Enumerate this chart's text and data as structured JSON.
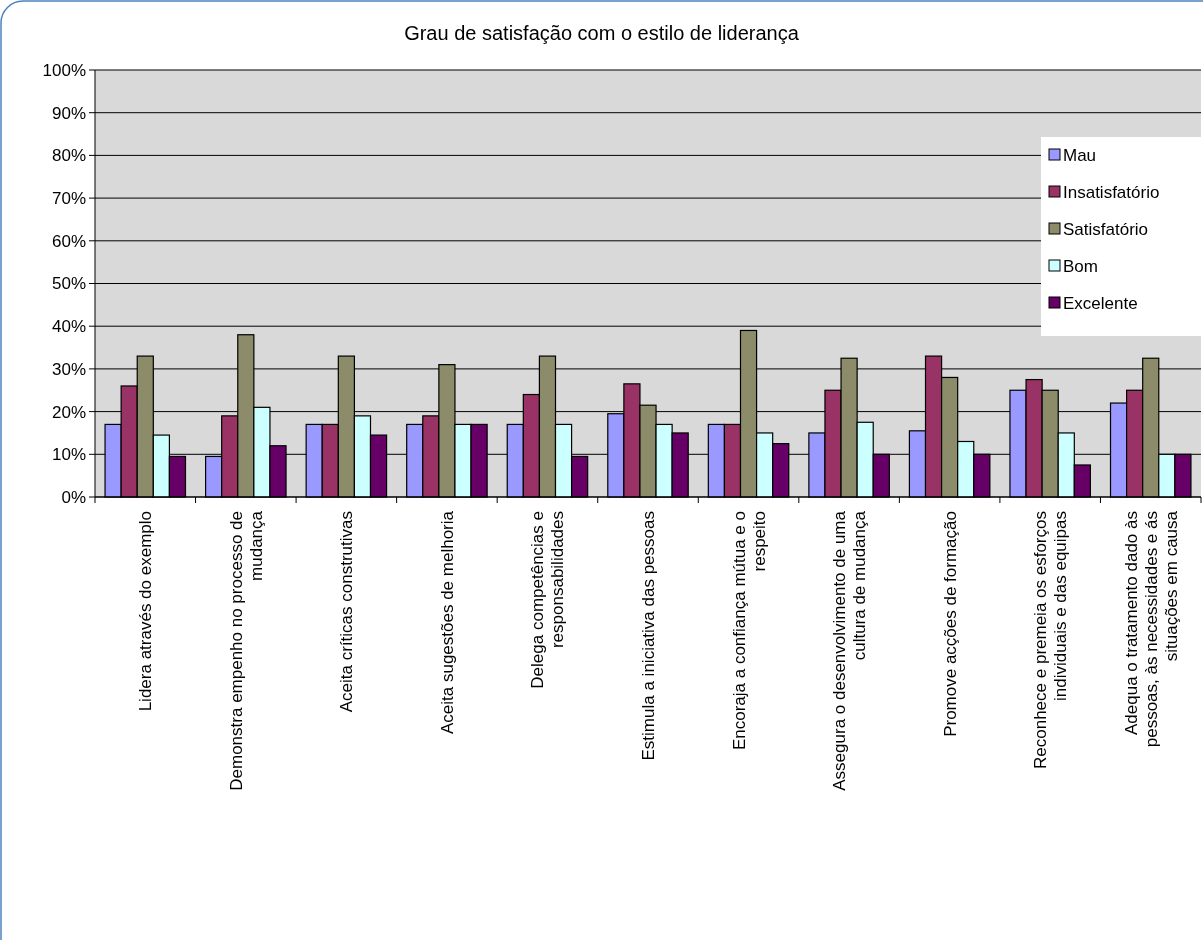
{
  "chart_data": {
    "type": "bar",
    "title": "Grau de satisfação com o estilo de liderança",
    "categories": [
      "Lidera através do exemplo",
      "Demonstra empenho no processo de mudança",
      "Aceita críticas construtivas",
      "Aceita sugestões de melhoria",
      "Delega competências e responsabilidades",
      "Estimula a iniciativa das pessoas",
      "Encoraja a confiança mútua e o respeito",
      "Assegura o desenvolvimento de uma cultura de mudança",
      "Promove acções de formação",
      "Reconhece e premeia os esforços individuais e das equipas",
      "Adequa o tratamento dado às pessoas, às necessidades e ás situações em causa"
    ],
    "series": [
      {
        "name": "Mau",
        "color": "#9999ff",
        "values": [
          17,
          9.5,
          17,
          17,
          17,
          19.5,
          17,
          15,
          15.5,
          25,
          22
        ]
      },
      {
        "name": "Insatisfatório",
        "color": "#993366",
        "values": [
          26,
          19,
          17,
          19,
          24,
          26.5,
          17,
          25,
          33,
          27.5,
          25
        ]
      },
      {
        "name": "Satisfatório",
        "color": "#8c8c6a",
        "values": [
          33,
          38,
          33,
          31,
          33,
          21.5,
          39,
          32.5,
          28,
          25,
          32.5
        ]
      },
      {
        "name": "Bom",
        "color": "#ccffff",
        "values": [
          14.5,
          21,
          19,
          17,
          17,
          17,
          15,
          17.5,
          13,
          15,
          10
        ]
      },
      {
        "name": "Excelente",
        "color": "#660066",
        "values": [
          9.5,
          12,
          14.5,
          17,
          9.5,
          15,
          12.5,
          10,
          10,
          7.5,
          10
        ]
      }
    ],
    "ylim": [
      0,
      100
    ],
    "yticks": [
      {
        "value": 0,
        "label": "0%"
      },
      {
        "value": 10,
        "label": "10%"
      },
      {
        "value": 20,
        "label": "20%"
      },
      {
        "value": 30,
        "label": "30%"
      },
      {
        "value": 40,
        "label": "40%"
      },
      {
        "value": 50,
        "label": "50%"
      },
      {
        "value": 60,
        "label": "60%"
      },
      {
        "value": 70,
        "label": "70%"
      },
      {
        "value": 80,
        "label": "80%"
      },
      {
        "value": 90,
        "label": "90%"
      },
      {
        "value": 100,
        "label": "100%"
      }
    ],
    "grid": "y",
    "legend": "top right"
  }
}
